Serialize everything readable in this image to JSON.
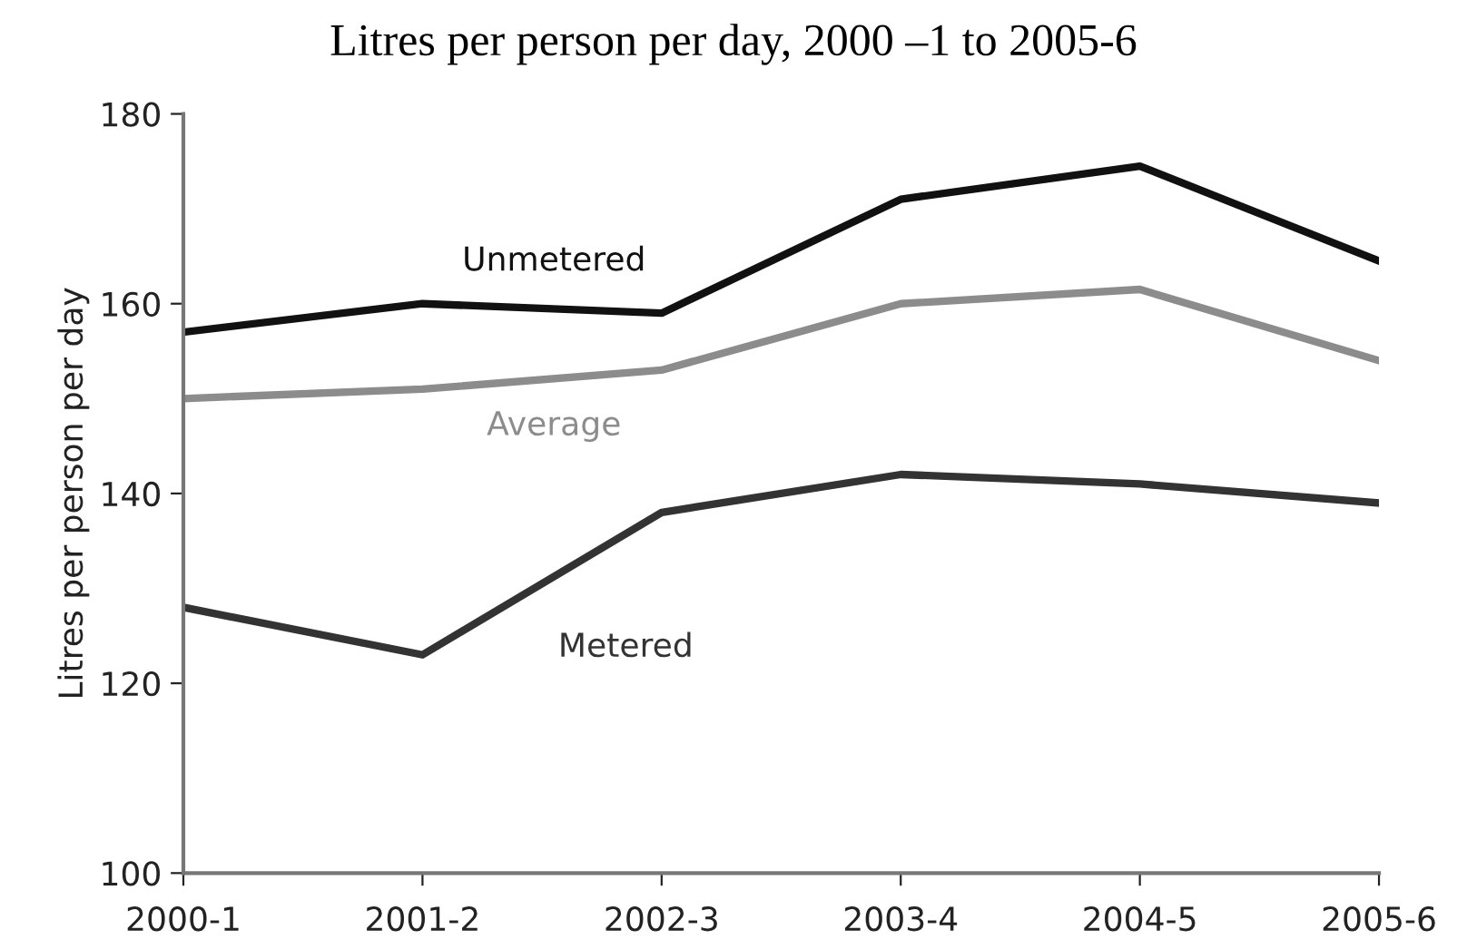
{
  "chart_data": {
    "type": "line",
    "title": "Litres per person per day, 2000 –1 to 2005-6",
    "ylabel": "Litres per person per day",
    "categories": [
      "2000-1",
      "2001-2",
      "2002-3",
      "2003-4",
      "2004-5",
      "2005-6"
    ],
    "series": [
      {
        "name": "Unmetered",
        "color": "#111111",
        "values": [
          157,
          160,
          159,
          171,
          174.5,
          164.5
        ]
      },
      {
        "name": "Average",
        "color": "#8c8c8c",
        "values": [
          150,
          151,
          153,
          160,
          161.5,
          154
        ]
      },
      {
        "name": "Metered",
        "color": "#333333",
        "values": [
          128,
          123,
          138,
          142,
          141,
          139
        ]
      }
    ],
    "ylim": [
      100,
      180
    ],
    "yticks": [
      100,
      120,
      140,
      160,
      180
    ],
    "grid": false,
    "legend": false,
    "marker": "none",
    "line_style": "solid"
  }
}
